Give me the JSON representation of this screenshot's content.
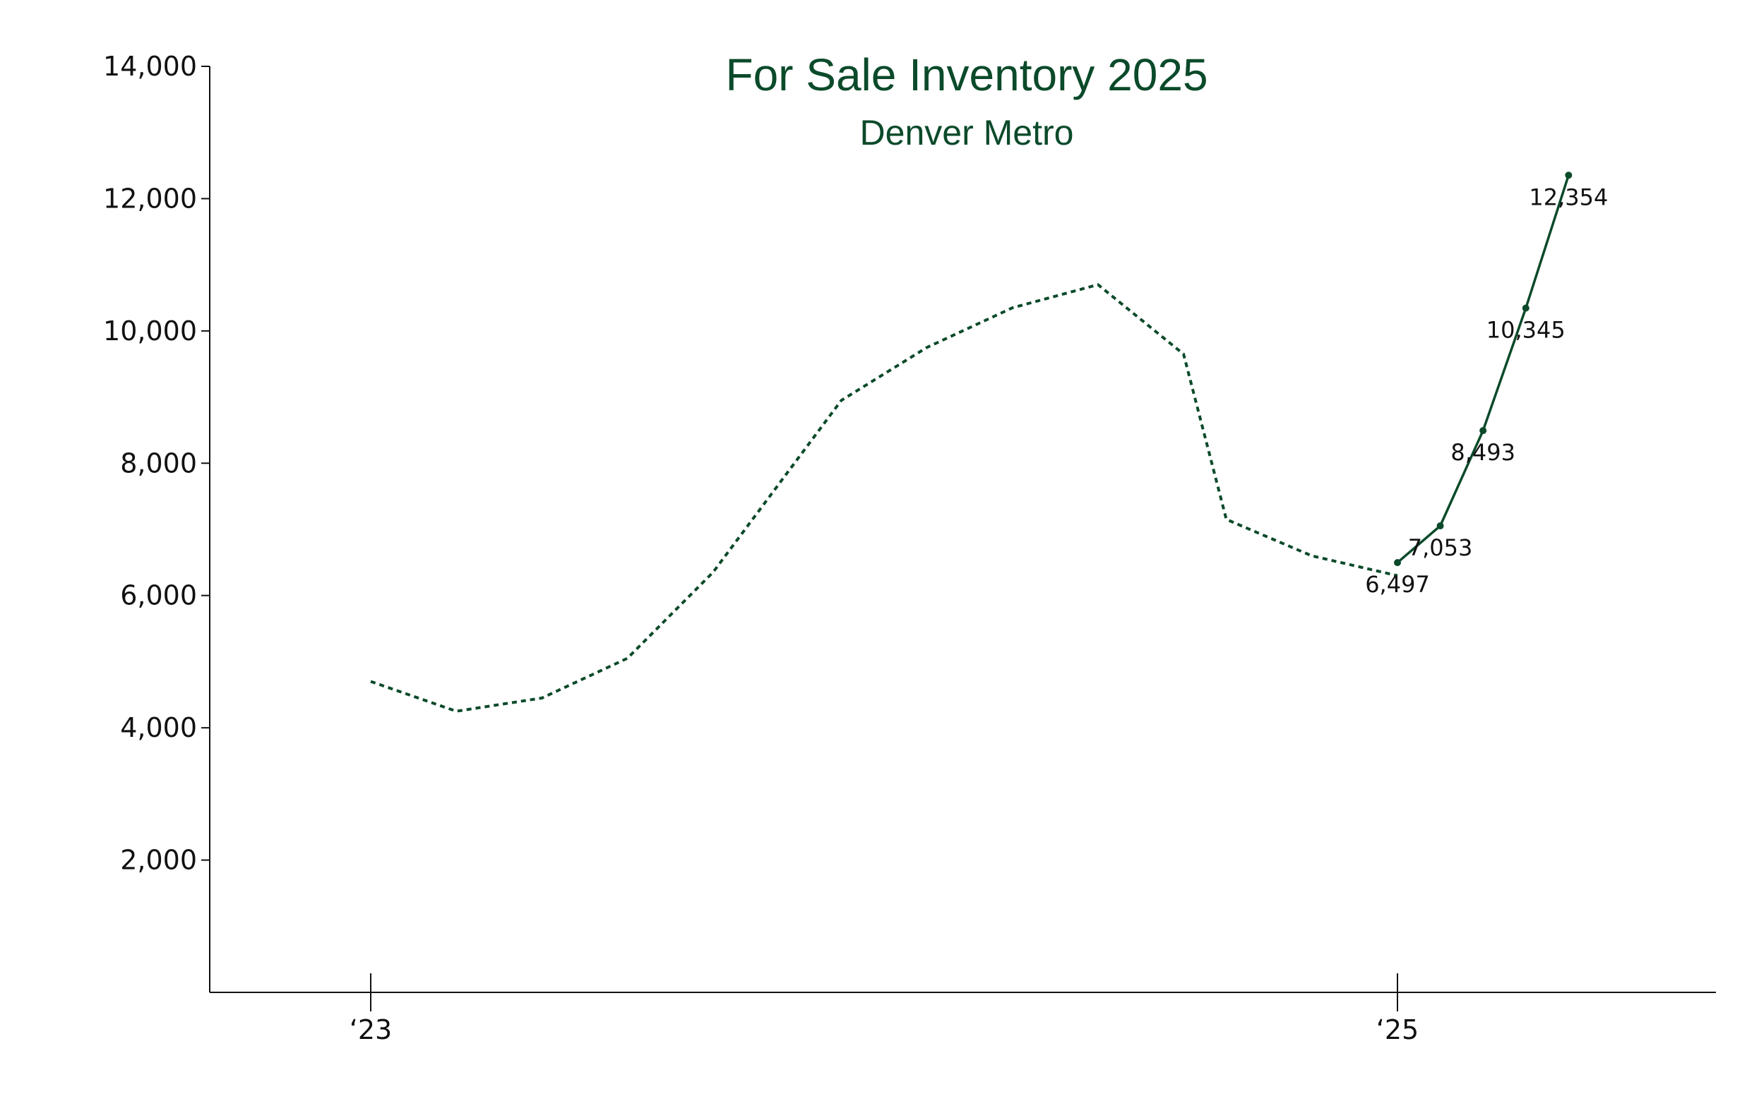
{
  "chart_data": {
    "type": "line",
    "title": "For Sale Inventory 2025",
    "subtitle": "Denver Metro",
    "xlabel": "",
    "ylabel": "",
    "ylim": [
      0,
      14000
    ],
    "y_ticks": [
      2000,
      4000,
      6000,
      8000,
      10000,
      12000,
      14000
    ],
    "y_tick_labels": [
      "2,000",
      "4,000",
      "6,000",
      "8,000",
      "10,000",
      "12,000",
      "14,000"
    ],
    "x_ticks": [
      {
        "x": "2023-01",
        "label": "‘23"
      },
      {
        "x": "2025-01",
        "label": "‘25"
      }
    ],
    "x_range": [
      "2022-10",
      "2025-07"
    ],
    "grid": false,
    "legend": "none",
    "series": [
      {
        "style": "dotted",
        "color": "#0b4a2a",
        "x": [
          "2023-01",
          "2023-03",
          "2023-05",
          "2023-07",
          "2023-09",
          "2023-12",
          "2024-02",
          "2024-04",
          "2024-06",
          "2024-08",
          "2024-09",
          "2024-11",
          "2025-01"
        ],
        "values": [
          4700,
          4250,
          4450,
          5050,
          6350,
          8950,
          9750,
          10350,
          10700,
          9650,
          7150,
          6600,
          6300
        ]
      },
      {
        "style": "solid",
        "color": "#0b4a2a",
        "markers": true,
        "x": [
          "2025-01",
          "2025-02",
          "2025-03",
          "2025-04",
          "2025-05"
        ],
        "values": [
          6497,
          7053,
          8493,
          10345,
          12354
        ],
        "data_labels": [
          "6,497",
          "7,053",
          "8,493",
          "10,345",
          "12,354"
        ]
      }
    ]
  }
}
